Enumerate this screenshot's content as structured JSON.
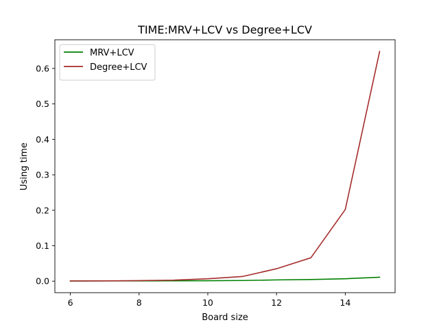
{
  "chart_data": {
    "type": "line",
    "title": "TIME:MRV+LCV vs Degree+LCV",
    "xlabel": "Board size",
    "ylabel": "Using time",
    "x": [
      6,
      7,
      8,
      9,
      10,
      11,
      12,
      13,
      14,
      15
    ],
    "xlim": [
      5.55,
      15.45
    ],
    "ylim": [
      -0.0325,
      0.681
    ],
    "xticks": [
      6,
      8,
      10,
      12,
      14
    ],
    "yticks": [
      0.0,
      0.1,
      0.2,
      0.3,
      0.4,
      0.5,
      0.6
    ],
    "grid": false,
    "legend_position": "top-left",
    "series": [
      {
        "name": "MRV+LCV",
        "color": "#008000",
        "values": [
          0.0005,
          0.0006,
          0.0008,
          0.001,
          0.0012,
          0.0018,
          0.0035,
          0.0045,
          0.0068,
          0.011
        ]
      },
      {
        "name": "Degree+LCV",
        "color": "#a52a2a",
        "values": [
          0.0005,
          0.0008,
          0.0015,
          0.0028,
          0.0068,
          0.013,
          0.035,
          0.066,
          0.202,
          0.648
        ]
      }
    ]
  }
}
